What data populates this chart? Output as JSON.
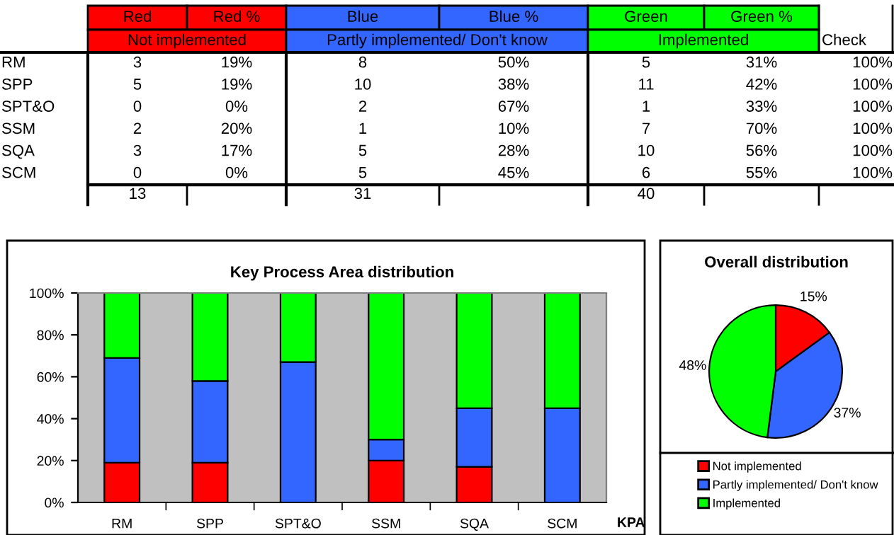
{
  "chart_data": [
    {
      "type": "other",
      "categories": [
        "Red",
        "Red %",
        "Blue",
        "Blue %",
        "Green",
        "Green %",
        null
      ],
      "colors": [
        "#ff0000",
        "#ff0000",
        "#3366ff",
        "#3366ff",
        "#00ff00",
        "#00ff00",
        "#ffffff"
      ],
      "annotations": [
        "Not implemented",
        "Partly implemented/ Don't know",
        "Implemented",
        "Check"
      ],
      "y_categories": [
        "RM",
        "SPP",
        "SPT&O",
        "SSM",
        "SQA",
        "SCM"
      ],
      "cell_labels": [
        [
          "3",
          "19%",
          "8",
          "50%",
          "5",
          "31%",
          "100%"
        ],
        [
          "5",
          "19%",
          "10",
          "38%",
          "11",
          "42%",
          "100%"
        ],
        [
          "0",
          "0%",
          "2",
          "67%",
          "1",
          "33%",
          "100%"
        ],
        [
          "2",
          "20%",
          "1",
          "10%",
          "7",
          "70%",
          "100%"
        ],
        [
          "3",
          "17%",
          "5",
          "28%",
          "10",
          "56%",
          "100%"
        ],
        [
          "0",
          "0%",
          "5",
          "45%",
          "6",
          "55%",
          "100%"
        ]
      ],
      "totals": [
        "13",
        "31",
        "40"
      ]
    },
    {
      "type": "bar",
      "title": "Key Process Area distribution",
      "xlabel": "KPA",
      "stacked": true,
      "categories": [
        "RM",
        "SPP",
        "SPT&O",
        "SSM",
        "SQA",
        "SCM"
      ],
      "series": [
        {
          "color": "#ff0000",
          "values": [
            19,
            19,
            0,
            20,
            17,
            0
          ]
        },
        {
          "color": "#3366ff",
          "values": [
            50,
            39,
            67,
            10,
            28,
            45
          ]
        },
        {
          "color": "#00ff00",
          "values": [
            31,
            42,
            33,
            70,
            55,
            55
          ]
        }
      ],
      "ylim": [
        0,
        100
      ],
      "yticks": [
        {
          "value": 0,
          "label": "0%"
        },
        {
          "value": 20,
          "label": "20%"
        },
        {
          "value": 40,
          "label": "40%"
        },
        {
          "value": 60,
          "label": "60%"
        },
        {
          "value": 80,
          "label": "80%"
        },
        {
          "value": 100,
          "label": "100%"
        }
      ]
    },
    {
      "type": "pie",
      "title": "Overall distribution",
      "categories": [
        "Not implemented",
        "Partly implemented/ Don't know",
        "Implemented"
      ],
      "values": [
        15,
        37,
        48
      ],
      "colors": [
        "#ff0000",
        "#3366ff",
        "#00ff00"
      ],
      "value_labels": [
        "15%",
        "37%",
        "48%"
      ],
      "legend": "bottom"
    }
  ]
}
